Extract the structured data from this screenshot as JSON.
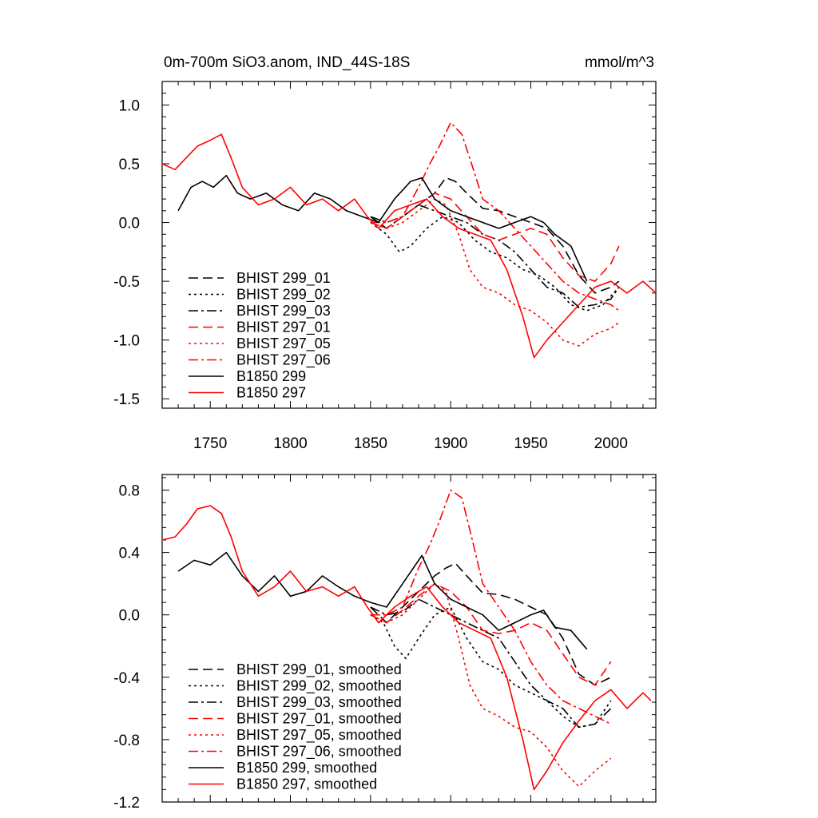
{
  "title_left": "0m-700m SiO3.anom, IND_44S-18S",
  "title_right": "mmol/m^3",
  "colors": {
    "black": "#000000",
    "red": "#ff0000"
  },
  "chart_data": [
    {
      "type": "line",
      "title": "0m-700m SiO3.anom, IND_44S-18S",
      "units": "mmol/m^3",
      "xlim": [
        1720,
        2028
      ],
      "ylim": [
        -1.58,
        1.2
      ],
      "xticks": [
        1750,
        1800,
        1850,
        1900,
        1950,
        2000
      ],
      "yticks": [
        1.0,
        0.5,
        0.0,
        -0.5,
        -1.0,
        -1.5
      ],
      "ytick_labels": [
        "1.0",
        "0.5",
        "0.0",
        "-0.5",
        "-1.0",
        "-1.5"
      ],
      "legend_position": "bottom-left",
      "series": [
        {
          "name": "BHIST 299_01",
          "color": "#000000",
          "dash": "dash",
          "x": [
            1850,
            1860,
            1870,
            1880,
            1890,
            1897,
            1903,
            1910,
            1920,
            1930,
            1940,
            1950,
            1960,
            1970,
            1980,
            1990,
            2000,
            2005
          ],
          "y": [
            0.05,
            -0.05,
            0.05,
            0.15,
            0.25,
            0.38,
            0.35,
            0.25,
            0.12,
            0.1,
            0.05,
            0.0,
            -0.05,
            -0.2,
            -0.45,
            -0.6,
            -0.55,
            -0.5
          ]
        },
        {
          "name": "BHIST 299_02",
          "color": "#000000",
          "dash": "dot",
          "x": [
            1850,
            1860,
            1868,
            1875,
            1885,
            1895,
            1905,
            1915,
            1925,
            1935,
            1945,
            1955,
            1965,
            1975,
            1985,
            1995,
            2005
          ],
          "y": [
            0.0,
            -0.1,
            -0.25,
            -0.2,
            -0.05,
            0.05,
            0.0,
            -0.15,
            -0.25,
            -0.3,
            -0.4,
            -0.45,
            -0.55,
            -0.7,
            -0.75,
            -0.7,
            -0.55
          ]
        },
        {
          "name": "BHIST 299_03",
          "color": "#000000",
          "dash": "dashdot",
          "x": [
            1850,
            1860,
            1870,
            1880,
            1890,
            1900,
            1910,
            1920,
            1930,
            1940,
            1950,
            1960,
            1970,
            1980,
            1990,
            2000,
            2005
          ],
          "y": [
            0.05,
            0.0,
            0.05,
            0.15,
            0.1,
            0.05,
            0.0,
            -0.1,
            -0.15,
            -0.25,
            -0.4,
            -0.55,
            -0.6,
            -0.72,
            -0.7,
            -0.65,
            -0.55
          ]
        },
        {
          "name": "BHIST 297_01",
          "color": "#ff0000",
          "dash": "dash",
          "x": [
            1850,
            1860,
            1870,
            1880,
            1890,
            1900,
            1910,
            1920,
            1930,
            1940,
            1950,
            1960,
            1970,
            1980,
            1990,
            2000,
            2005
          ],
          "y": [
            0.0,
            -0.05,
            0.05,
            0.15,
            0.25,
            0.2,
            0.05,
            -0.1,
            -0.15,
            -0.1,
            -0.05,
            -0.1,
            -0.3,
            -0.45,
            -0.5,
            -0.35,
            -0.2
          ]
        },
        {
          "name": "BHIST 297_05",
          "color": "#ff0000",
          "dash": "dot",
          "x": [
            1850,
            1860,
            1870,
            1880,
            1890,
            1897,
            1905,
            1912,
            1920,
            1930,
            1940,
            1950,
            1960,
            1970,
            1980,
            1990,
            2000,
            2005
          ],
          "y": [
            0.0,
            -0.05,
            0.0,
            0.1,
            0.2,
            0.15,
            -0.1,
            -0.4,
            -0.55,
            -0.6,
            -0.7,
            -0.75,
            -0.85,
            -1.0,
            -1.05,
            -0.95,
            -0.9,
            -0.85
          ]
        },
        {
          "name": "BHIST 297_06",
          "color": "#ff0000",
          "dash": "dashdot",
          "x": [
            1850,
            1860,
            1870,
            1880,
            1887,
            1893,
            1900,
            1907,
            1913,
            1920,
            1930,
            1940,
            1950,
            1960,
            1970,
            1980,
            1990,
            2000,
            2005
          ],
          "y": [
            0.0,
            0.0,
            0.05,
            0.3,
            0.5,
            0.65,
            0.85,
            0.75,
            0.5,
            0.2,
            0.1,
            -0.05,
            -0.2,
            -0.35,
            -0.5,
            -0.6,
            -0.65,
            -0.7,
            -0.75
          ]
        },
        {
          "name": "B1850 299",
          "color": "#000000",
          "dash": "solid",
          "x": [
            1730,
            1738,
            1745,
            1752,
            1760,
            1767,
            1775,
            1785,
            1795,
            1805,
            1815,
            1825,
            1835,
            1845,
            1855,
            1865,
            1875,
            1882,
            1890,
            1900,
            1910,
            1920,
            1930,
            1940,
            1950,
            1958,
            1965,
            1975,
            1985
          ],
          "y": [
            0.1,
            0.3,
            0.35,
            0.3,
            0.4,
            0.25,
            0.2,
            0.25,
            0.15,
            0.1,
            0.25,
            0.2,
            0.1,
            0.05,
            0.0,
            0.2,
            0.35,
            0.38,
            0.2,
            0.1,
            0.05,
            0.0,
            -0.05,
            0.0,
            0.05,
            0.0,
            -0.1,
            -0.2,
            -0.5
          ]
        },
        {
          "name": "B1850 297",
          "color": "#ff0000",
          "dash": "solid",
          "x": [
            1720,
            1728,
            1735,
            1742,
            1750,
            1757,
            1763,
            1770,
            1780,
            1790,
            1800,
            1810,
            1820,
            1830,
            1840,
            1848,
            1855,
            1865,
            1875,
            1885,
            1895,
            1905,
            1915,
            1925,
            1935,
            1945,
            1952,
            1960,
            1970,
            1980,
            1990,
            2000,
            2010,
            2020,
            2028
          ],
          "y": [
            0.5,
            0.45,
            0.55,
            0.65,
            0.7,
            0.75,
            0.55,
            0.3,
            0.15,
            0.2,
            0.3,
            0.15,
            0.2,
            0.1,
            0.2,
            0.05,
            -0.05,
            0.1,
            0.15,
            0.2,
            0.05,
            -0.05,
            -0.1,
            -0.15,
            -0.4,
            -0.8,
            -1.15,
            -1.0,
            -0.85,
            -0.7,
            -0.55,
            -0.5,
            -0.6,
            -0.5,
            -0.6
          ]
        }
      ]
    },
    {
      "type": "line",
      "xlim": [
        1720,
        2028
      ],
      "ylim": [
        -1.2,
        0.9
      ],
      "xticks": [
        1750,
        1800,
        1850,
        1900,
        1950,
        2000
      ],
      "yticks": [
        0.8,
        0.4,
        0.0,
        -0.4,
        -0.8,
        -1.2
      ],
      "ytick_labels": [
        "0.8",
        "0.4",
        "0.0",
        "-0.4",
        "-0.8",
        "-1.2"
      ],
      "legend_position": "bottom-left",
      "series": [
        {
          "name": "BHIST 299_01, smoothed",
          "color": "#000000",
          "dash": "dash",
          "x": [
            1850,
            1860,
            1870,
            1880,
            1890,
            1897,
            1903,
            1910,
            1920,
            1930,
            1940,
            1950,
            1960,
            1970,
            1980,
            1990,
            2000
          ],
          "y": [
            0.05,
            -0.05,
            0.05,
            0.15,
            0.25,
            0.3,
            0.33,
            0.25,
            0.14,
            0.13,
            0.1,
            0.05,
            0.0,
            -0.15,
            -0.38,
            -0.45,
            -0.4
          ]
        },
        {
          "name": "BHIST 299_02, smoothed",
          "color": "#000000",
          "dash": "dot",
          "x": [
            1850,
            1858,
            1865,
            1872,
            1880,
            1890,
            1900,
            1910,
            1920,
            1930,
            1940,
            1950,
            1960,
            1970,
            1980,
            1990,
            2000
          ],
          "y": [
            0.0,
            -0.05,
            -0.2,
            -0.28,
            -0.15,
            0.0,
            0.05,
            -0.15,
            -0.3,
            -0.35,
            -0.45,
            -0.5,
            -0.55,
            -0.65,
            -0.72,
            -0.7,
            -0.55
          ]
        },
        {
          "name": "BHIST 299_03, smoothed",
          "color": "#000000",
          "dash": "dashdot",
          "x": [
            1850,
            1860,
            1870,
            1880,
            1890,
            1900,
            1910,
            1920,
            1930,
            1940,
            1950,
            1960,
            1970,
            1980,
            1990,
            2000
          ],
          "y": [
            0.05,
            0.0,
            0.02,
            0.1,
            0.05,
            0.0,
            -0.05,
            -0.1,
            -0.15,
            -0.3,
            -0.45,
            -0.55,
            -0.6,
            -0.72,
            -0.7,
            -0.6
          ]
        },
        {
          "name": "BHIST 297_01, smoothed",
          "color": "#ff0000",
          "dash": "dash",
          "x": [
            1850,
            1860,
            1870,
            1880,
            1890,
            1900,
            1910,
            1920,
            1930,
            1940,
            1950,
            1960,
            1970,
            1980,
            1990,
            2000
          ],
          "y": [
            0.0,
            -0.05,
            0.03,
            0.12,
            0.2,
            0.15,
            0.05,
            -0.1,
            -0.12,
            -0.1,
            -0.05,
            -0.1,
            -0.25,
            -0.4,
            -0.45,
            -0.3
          ]
        },
        {
          "name": "BHIST 297_05, smoothed",
          "color": "#ff0000",
          "dash": "dot",
          "x": [
            1850,
            1860,
            1870,
            1880,
            1890,
            1897,
            1905,
            1912,
            1920,
            1930,
            1940,
            1950,
            1960,
            1970,
            1980,
            1990,
            2000
          ],
          "y": [
            0.0,
            -0.05,
            0.0,
            0.1,
            0.2,
            0.15,
            -0.15,
            -0.45,
            -0.6,
            -0.65,
            -0.72,
            -0.75,
            -0.85,
            -1.0,
            -1.1,
            -1.0,
            -0.92
          ]
        },
        {
          "name": "BHIST 297_06, smoothed",
          "color": "#ff0000",
          "dash": "dashdot",
          "x": [
            1850,
            1860,
            1870,
            1880,
            1887,
            1893,
            1900,
            1907,
            1913,
            1920,
            1930,
            1940,
            1950,
            1960,
            1970,
            1980,
            1990,
            2000
          ],
          "y": [
            0.0,
            0.0,
            0.05,
            0.3,
            0.45,
            0.6,
            0.8,
            0.75,
            0.5,
            0.2,
            0.05,
            -0.1,
            -0.3,
            -0.45,
            -0.55,
            -0.6,
            -0.65,
            -0.7
          ]
        },
        {
          "name": "B1850 299, smoothed",
          "color": "#000000",
          "dash": "solid",
          "x": [
            1730,
            1740,
            1750,
            1760,
            1770,
            1780,
            1790,
            1800,
            1810,
            1820,
            1830,
            1840,
            1850,
            1860,
            1870,
            1882,
            1890,
            1900,
            1910,
            1920,
            1930,
            1940,
            1950,
            1958,
            1965,
            1975,
            1985
          ],
          "y": [
            0.28,
            0.35,
            0.32,
            0.4,
            0.25,
            0.15,
            0.25,
            0.12,
            0.15,
            0.25,
            0.18,
            0.12,
            0.08,
            0.05,
            0.2,
            0.38,
            0.2,
            0.1,
            0.05,
            0.0,
            -0.1,
            -0.05,
            0.0,
            0.03,
            -0.08,
            -0.1,
            -0.22
          ]
        },
        {
          "name": "B1850 297, smoothed",
          "color": "#ff0000",
          "dash": "solid",
          "x": [
            1720,
            1728,
            1735,
            1742,
            1750,
            1757,
            1763,
            1770,
            1780,
            1790,
            1800,
            1810,
            1820,
            1830,
            1840,
            1848,
            1855,
            1865,
            1875,
            1885,
            1895,
            1905,
            1915,
            1925,
            1935,
            1945,
            1952,
            1960,
            1970,
            1980,
            1990,
            2000,
            2010,
            2020,
            2025
          ],
          "y": [
            0.48,
            0.5,
            0.58,
            0.68,
            0.7,
            0.65,
            0.5,
            0.28,
            0.12,
            0.18,
            0.28,
            0.15,
            0.18,
            0.12,
            0.18,
            0.05,
            -0.05,
            0.05,
            0.12,
            0.18,
            0.05,
            -0.05,
            -0.1,
            -0.15,
            -0.4,
            -0.8,
            -1.12,
            -1.0,
            -0.82,
            -0.68,
            -0.55,
            -0.48,
            -0.6,
            -0.5,
            -0.55
          ]
        }
      ]
    }
  ]
}
